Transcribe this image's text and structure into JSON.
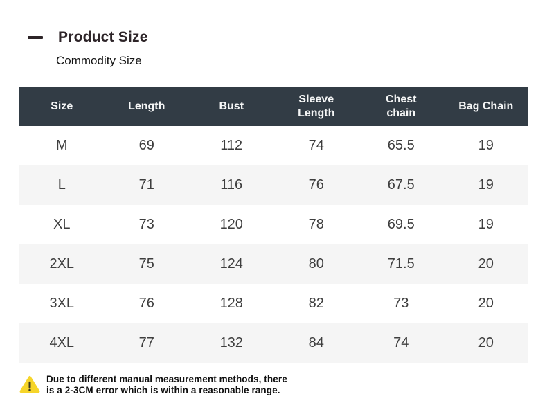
{
  "chart_data": {
    "type": "table",
    "title": "Product Size",
    "subtitle": "Commodity Size",
    "columns": [
      "Size",
      "Length",
      "Bust",
      "Sleeve\nLength",
      "Chest\nchain",
      "Bag Chain"
    ],
    "rows": [
      [
        "M",
        "69",
        "112",
        "74",
        "65.5",
        "19"
      ],
      [
        "L",
        "71",
        "116",
        "76",
        "67.5",
        "19"
      ],
      [
        "XL",
        "73",
        "120",
        "78",
        "69.5",
        "19"
      ],
      [
        "2XL",
        "75",
        "124",
        "80",
        "71.5",
        "20"
      ],
      [
        "3XL",
        "76",
        "128",
        "82",
        "73",
        "20"
      ],
      [
        "4XL",
        "77",
        "132",
        "84",
        "74",
        "20"
      ]
    ],
    "layout_hints": {
      "header_style": "dark band, white bold text",
      "row_striping": "even data rows white, odd data rows light gray",
      "grid": "off"
    }
  },
  "notice": {
    "icon": "warning-triangle-icon",
    "line1": "Due to different manual measurement methods, there",
    "line2": "is a 2-3CM error which is within a reasonable range."
  },
  "colors": {
    "header_bg": "#323c45",
    "header_text": "#f5f6f6",
    "row_alt_bg": "#f5f5f5",
    "cell_text": "#3e3e3e",
    "title_text": "#2d2428",
    "warning_fill": "#f6d52a",
    "warning_mark": "#3c3a20",
    "notice_text": "#101010"
  }
}
